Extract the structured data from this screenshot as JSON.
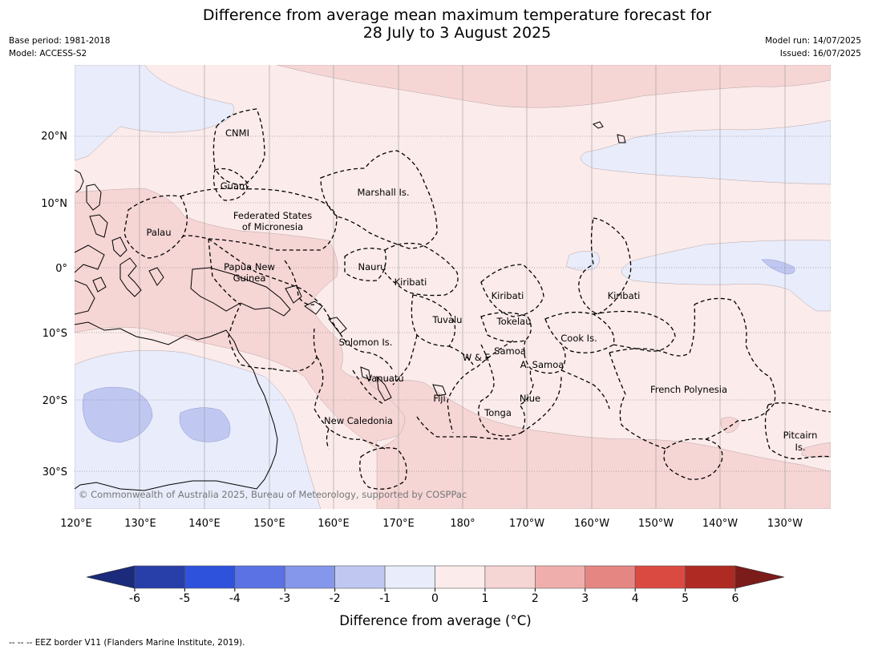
{
  "header": {
    "title_line1": "Difference from average mean maximum temperature forecast for",
    "title_line2": "28 July to 3 August 2025",
    "base_period": "Base period: 1981-2018",
    "model": "Model: ACCESS-S2",
    "model_run": "Model run: 14/07/2025",
    "issued": "Issued: 16/07/2025"
  },
  "map": {
    "lat_labels": [
      "20°N",
      "10°N",
      "0°",
      "10°S",
      "20°S",
      "30°S"
    ],
    "lon_labels": [
      "120°E",
      "130°E",
      "140°E",
      "150°E",
      "160°E",
      "170°E",
      "180°",
      "170°W",
      "160°W",
      "150°W",
      "140°W",
      "130°W"
    ],
    "copyright": "© Commonwealth of Australia 2025, Bureau of Meteorology, supported by COSPPac",
    "region_labels": {
      "cnmi": "CNMI",
      "guam": "Guam",
      "marshall": "Marshall Is.",
      "fsm_1": "Federated States",
      "fsm_2": "of Micronesia",
      "palau": "Palau",
      "nauru": "Nauru",
      "png_1": "Papua New",
      "png_2": "Guinea",
      "kiribati_w": "Kiribati",
      "kiribati_c": "Kiribati",
      "kiribati_e": "Kiribati",
      "tuvalu": "Tuvalu",
      "tokelau": "Tokelau",
      "cook": "Cook Is.",
      "solomon": "Solomon Is.",
      "samoa": "Samoa",
      "wf": "W & F",
      "asamoa": "A. Samoa",
      "vanuatu": "Vanuatu",
      "fiji": "Fiji",
      "niue": "Niue",
      "tonga": "Tonga",
      "new_caledonia": "New Caledonia",
      "french_polynesia": "French Polynesia",
      "pitcairn_1": "Pitcairn",
      "pitcairn_2": "Is."
    }
  },
  "colorbar": {
    "label": "Difference from average (°C)",
    "ticks": [
      "-6",
      "-5",
      "-4",
      "-3",
      "-2",
      "-1",
      "0",
      "1",
      "2",
      "3",
      "4",
      "5",
      "6"
    ],
    "min_color": "#1c2a7c",
    "max_color": "#7c1c1a",
    "colors": [
      "#283ea8",
      "#2f52dc",
      "#5a72e4",
      "#8597ea",
      "#c0c8f2",
      "#e8ecfb",
      "#fbebea",
      "#f6d5d5",
      "#efaeab",
      "#e68683",
      "#da4a41",
      "#ae2a23"
    ]
  },
  "footnote": "--  --  -- EEZ border V11 (Flanders Marine Institute, 2019)."
}
